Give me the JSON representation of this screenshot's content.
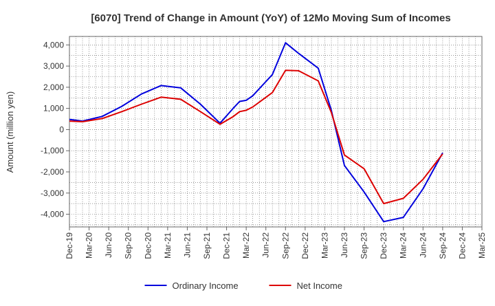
{
  "chart_data": {
    "type": "line",
    "title": "[6070]  Trend of Change in Amount (YoY) of 12Mo Moving Sum of Incomes",
    "xlabel": "",
    "ylabel": "Amount (million yen)",
    "ylim": [
      -4600,
      4400
    ],
    "yticks": [
      4000,
      3000,
      2000,
      1000,
      0,
      -1000,
      -2000,
      -3000,
      -4000
    ],
    "ytick_labels": [
      "4,000",
      "3,000",
      "2,000",
      "1,000",
      "0",
      "-1,000",
      "-2,000",
      "-3,000",
      "-4,000"
    ],
    "categories": [
      "Dec-19",
      "Mar-20",
      "Jun-20",
      "Sep-20",
      "Dec-20",
      "Mar-21",
      "Jun-21",
      "Sep-21",
      "Dec-21",
      "Mar-22",
      "Jun-22",
      "Sep-22",
      "Dec-22",
      "Mar-23",
      "Jun-23",
      "Sep-23",
      "Dec-23",
      "Mar-24",
      "Jun-24",
      "Sep-24",
      "Dec-24",
      "Mar-25"
    ],
    "x_range": [
      0,
      63
    ],
    "grid": true,
    "legend_position": "bottom",
    "series": [
      {
        "name": "Ordinary Income",
        "color": "#0000dd",
        "x": [
          0,
          2,
          5,
          8,
          11,
          14,
          17,
          20,
          23,
          25,
          26,
          27,
          28,
          31,
          33,
          35,
          38,
          40,
          42,
          45,
          48,
          51,
          54,
          57,
          60
        ],
        "values": [
          480,
          400,
          620,
          1100,
          1680,
          2080,
          1970,
          1200,
          300,
          1000,
          1330,
          1380,
          1600,
          2600,
          4100,
          3600,
          2900,
          900,
          -1700,
          -2950,
          -4350,
          -4150,
          -2800,
          -1100,
          null
        ]
      },
      {
        "name": "Net Income",
        "color": "#dd0000",
        "x": [
          0,
          2,
          5,
          8,
          11,
          14,
          17,
          20,
          23,
          25,
          26,
          27,
          28,
          31,
          33,
          35,
          38,
          40,
          42,
          45,
          48,
          51,
          54,
          57,
          60
        ],
        "values": [
          400,
          370,
          520,
          850,
          1200,
          1530,
          1430,
          850,
          250,
          610,
          850,
          910,
          1070,
          1750,
          2800,
          2780,
          2300,
          800,
          -1200,
          -1850,
          -3500,
          -3250,
          -2350,
          -1150,
          null
        ]
      }
    ]
  }
}
